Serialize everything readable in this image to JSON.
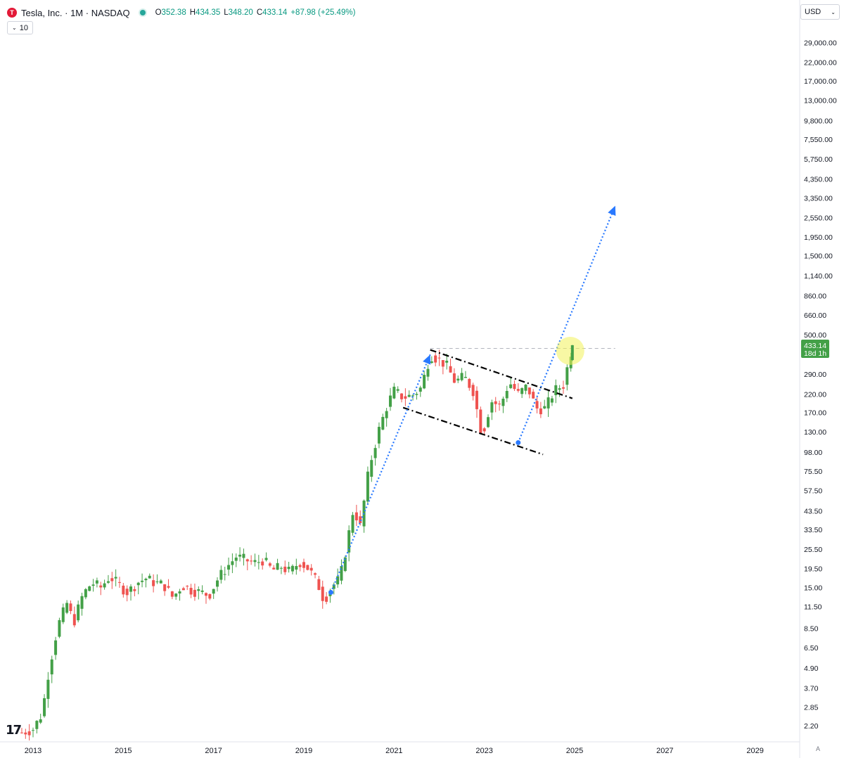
{
  "header": {
    "logo_letter": "T",
    "title": "Tesla, Inc. · 1M · NASDAQ",
    "ohlc": {
      "o_label": "O",
      "o_value": "352.38",
      "h_label": "H",
      "h_value": "434.35",
      "l_label": "L",
      "l_value": "348.20",
      "c_label": "C",
      "c_value": "433.14",
      "change": "+87.98 (+25.49%)"
    },
    "interval_value": "10",
    "currency": "USD",
    "auto_label": "A"
  },
  "colors": {
    "up": "#26a69a",
    "up_candle": "#43a047",
    "down_candle": "#ef5350",
    "projection": "#2979ff",
    "channel": "#000000",
    "highlight": "#f2f25a",
    "price_tag": "#43a047"
  },
  "chart_data": {
    "type": "candlestick",
    "scale": "log",
    "symbol": "TSLA",
    "interval": "1M",
    "x_ticks": [
      "2013",
      "2015",
      "2017",
      "2019",
      "2021",
      "2023",
      "2025",
      "2027",
      "2029"
    ],
    "y_ticks": [
      "29,000.00",
      "22,000.00",
      "17,000.00",
      "13,000.00",
      "9,800.00",
      "7,550.00",
      "5,750.00",
      "4,350.00",
      "3,350.00",
      "2,550.00",
      "1,950.00",
      "1,500.00",
      "1,140.00",
      "860.00",
      "660.00",
      "500.00",
      "290.00",
      "220.00",
      "170.00",
      "130.00",
      "98.00",
      "75.50",
      "57.50",
      "43.50",
      "33.50",
      "25.50",
      "19.50",
      "15.00",
      "11.50",
      "8.50",
      "6.50",
      "4.90",
      "3.70",
      "2.85",
      "2.20"
    ],
    "last_price": "433.14",
    "countdown": "18d 1h",
    "price_path": [
      [
        2012.75,
        2.0
      ],
      [
        2013.0,
        2.1
      ],
      [
        2013.2,
        2.6
      ],
      [
        2013.35,
        4.8
      ],
      [
        2013.55,
        8.8
      ],
      [
        2013.75,
        12.0
      ],
      [
        2013.9,
        9.2
      ],
      [
        2014.1,
        13.5
      ],
      [
        2014.3,
        16.0
      ],
      [
        2014.5,
        15.0
      ],
      [
        2014.7,
        17.5
      ],
      [
        2014.9,
        15.5
      ],
      [
        2015.1,
        14.0
      ],
      [
        2015.3,
        16.0
      ],
      [
        2015.5,
        17.0
      ],
      [
        2015.7,
        16.0
      ],
      [
        2015.9,
        15.5
      ],
      [
        2016.1,
        13.0
      ],
      [
        2016.3,
        15.5
      ],
      [
        2016.5,
        14.5
      ],
      [
        2016.7,
        14.0
      ],
      [
        2016.9,
        13.5
      ],
      [
        2017.1,
        17.0
      ],
      [
        2017.3,
        20.0
      ],
      [
        2017.5,
        23.0
      ],
      [
        2017.7,
        22.0
      ],
      [
        2017.9,
        21.0
      ],
      [
        2018.1,
        22.0
      ],
      [
        2018.3,
        19.0
      ],
      [
        2018.5,
        20.0
      ],
      [
        2018.7,
        18.5
      ],
      [
        2018.9,
        21.5
      ],
      [
        2019.1,
        19.5
      ],
      [
        2019.3,
        16.0
      ],
      [
        2019.45,
        12.5
      ],
      [
        2019.6,
        15.0
      ],
      [
        2019.8,
        17.0
      ],
      [
        2019.95,
        27.0
      ],
      [
        2020.1,
        45.0
      ],
      [
        2020.25,
        35.0
      ],
      [
        2020.45,
        80.0
      ],
      [
        2020.65,
        130.0
      ],
      [
        2020.85,
        190.0
      ],
      [
        2021.0,
        230.0
      ],
      [
        2021.2,
        210.0
      ],
      [
        2021.4,
        215.0
      ],
      [
        2021.6,
        240.0
      ],
      [
        2021.8,
        380.0
      ],
      [
        2021.95,
        360.0
      ],
      [
        2022.15,
        330.0
      ],
      [
        2022.35,
        260.0
      ],
      [
        2022.55,
        280.0
      ],
      [
        2022.75,
        230.0
      ],
      [
        2022.95,
        123.0
      ],
      [
        2023.15,
        200.0
      ],
      [
        2023.35,
        185.0
      ],
      [
        2023.55,
        260.0
      ],
      [
        2023.75,
        220.0
      ],
      [
        2023.95,
        245.0
      ],
      [
        2024.15,
        180.0
      ],
      [
        2024.35,
        180.0
      ],
      [
        2024.55,
        230.0
      ],
      [
        2024.75,
        250.0
      ],
      [
        2024.95,
        433.0
      ]
    ],
    "annotations": {
      "channel_upper": [
        [
          2021.8,
          406
        ],
        [
          2024.95,
          207
        ]
      ],
      "channel_lower": [
        [
          2021.2,
          182
        ],
        [
          2024.3,
          95
        ]
      ],
      "projection_1": [
        [
          2019.6,
          14.0
        ],
        [
          2021.8,
          380.0
        ]
      ],
      "projection_2": [
        [
          2023.75,
          112.0
        ],
        [
          2025.9,
          3000.0
        ]
      ],
      "resistance_level": 414,
      "start_markers": [
        [
          2019.6,
          14.0
        ],
        [
          2023.75,
          112.0
        ]
      ],
      "highlight_at": [
        2024.95,
        433.0
      ]
    }
  }
}
